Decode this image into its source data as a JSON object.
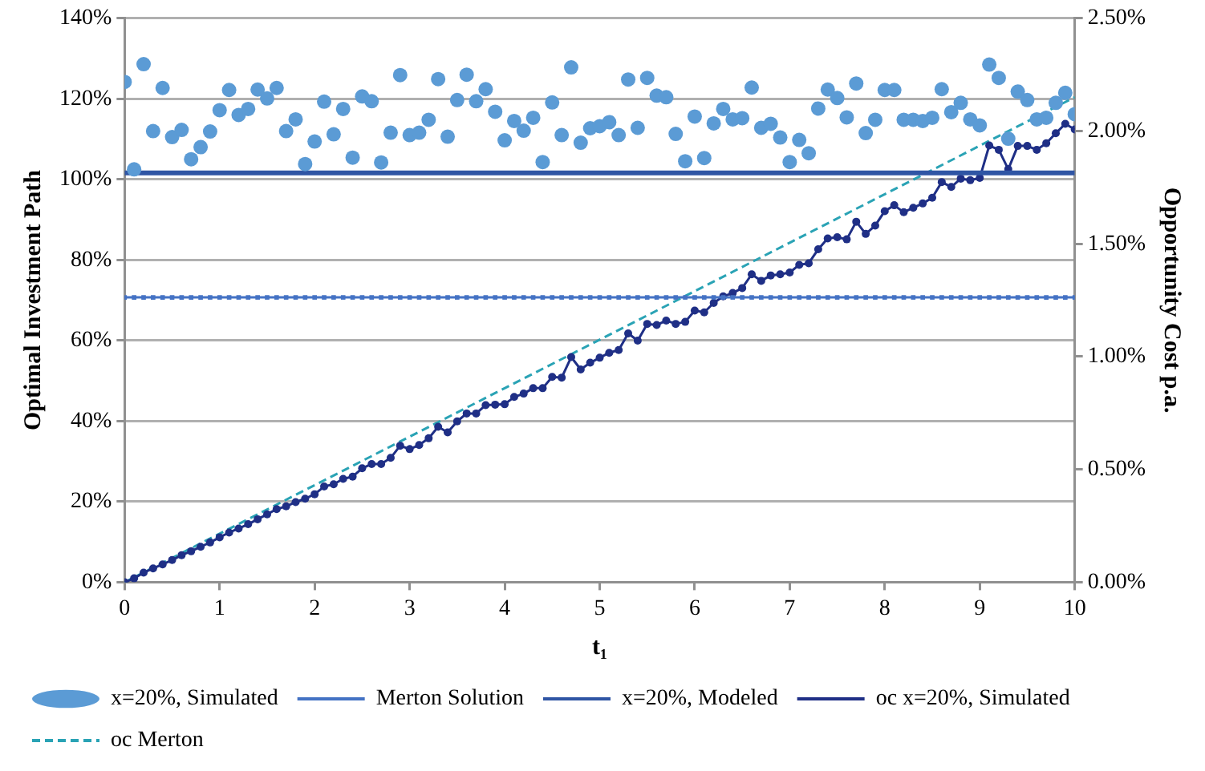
{
  "chart_data": {
    "type": "scatter",
    "xlabel": "t₁",
    "ylabel": "Optimal Investment Path",
    "y2label": "Opportunity Cost p.a.",
    "x": [
      0,
      0.1,
      0.2,
      0.3,
      0.4,
      0.5,
      0.6,
      0.7,
      0.8,
      0.9,
      1,
      1.1,
      1.2,
      1.3,
      1.4,
      1.5,
      1.6,
      1.7,
      1.8,
      1.9,
      2,
      2.1,
      2.2,
      2.3,
      2.4,
      2.5,
      2.6,
      2.7,
      2.8,
      2.9,
      3,
      3.1,
      3.2,
      3.3,
      3.4,
      3.5,
      3.6,
      3.7,
      3.8,
      3.9,
      4,
      4.1,
      4.2,
      4.3,
      4.4,
      4.5,
      4.6,
      4.7,
      4.8,
      4.9,
      5,
      5.1,
      5.2,
      5.3,
      5.4,
      5.5,
      5.6,
      5.7,
      5.8,
      5.9,
      6,
      6.1,
      6.2,
      6.3,
      6.4,
      6.5,
      6.6,
      6.7,
      6.8,
      6.9,
      7,
      7.1,
      7.2,
      7.3,
      7.4,
      7.5,
      7.6,
      7.7,
      7.8,
      7.9,
      8,
      8.1,
      8.2,
      8.3,
      8.4,
      8.5,
      8.6,
      8.7,
      8.8,
      8.9,
      9,
      9.1,
      9.2,
      9.3,
      9.4,
      9.5,
      9.6,
      9.7,
      9.8,
      9.9,
      10
    ],
    "series": [
      {
        "name": "x=20%, Simulated",
        "type": "scatter",
        "marker": "circle",
        "color": "#5b9bd5",
        "values": [
          124.2,
          102.5,
          128.6,
          112,
          122.7,
          110.5,
          112.3,
          105,
          108,
          111.9,
          117.2,
          122.2,
          116,
          117.5,
          122.3,
          120.1,
          122.7,
          112,
          114.9,
          103.8,
          109.4,
          119.3,
          111.2,
          117.5,
          105.4,
          120.6,
          119.4,
          104.2,
          111.6,
          125.9,
          111,
          111.6,
          114.8,
          124.9,
          110.6,
          119.7,
          126,
          119.4,
          122.4,
          116.8,
          109.7,
          114.5,
          112.1,
          115.3,
          104.3,
          119.1,
          111,
          127.8,
          109.1,
          112.7,
          113.2,
          114.2,
          111,
          124.8,
          112.8,
          125.2,
          120.8,
          120.4,
          111.3,
          104.5,
          115.6,
          105.3,
          113.9,
          117.5,
          114.9,
          115.2,
          122.8,
          112.8,
          113.8,
          110.4,
          104.3,
          109.8,
          106.5,
          117.6,
          122.3,
          120.2,
          115.4,
          123.8,
          111.5,
          114.8,
          122.2,
          122.2,
          114.8,
          114.8,
          114.5,
          115.3,
          122.4,
          116.7,
          119,
          114.9,
          113.4,
          128.5,
          125.2,
          110.1,
          121.8,
          119.7,
          114.9,
          115.3,
          119,
          121.5,
          116.2
        ]
      },
      {
        "name": "Merton Solution",
        "type": "line",
        "marker": "square",
        "line_style": "solid",
        "color": "#4472c4",
        "values": [
          70.7,
          70.7,
          70.7,
          70.7,
          70.7,
          70.7,
          70.7,
          70.7,
          70.7,
          70.7,
          70.7,
          70.7,
          70.7,
          70.7,
          70.7,
          70.7,
          70.7,
          70.7,
          70.7,
          70.7,
          70.7,
          70.7,
          70.7,
          70.7,
          70.7,
          70.7,
          70.7,
          70.7,
          70.7,
          70.7,
          70.7,
          70.7,
          70.7,
          70.7,
          70.7,
          70.7,
          70.7,
          70.7,
          70.7,
          70.7,
          70.7,
          70.7,
          70.7,
          70.7,
          70.7,
          70.7,
          70.7,
          70.7,
          70.7,
          70.7,
          70.7,
          70.7,
          70.7,
          70.7,
          70.7,
          70.7,
          70.7,
          70.7,
          70.7,
          70.7,
          70.7,
          70.7,
          70.7,
          70.7,
          70.7,
          70.7,
          70.7,
          70.7,
          70.7,
          70.7,
          70.7,
          70.7,
          70.7,
          70.7,
          70.7,
          70.7,
          70.7,
          70.7,
          70.7,
          70.7,
          70.7,
          70.7,
          70.7,
          70.7,
          70.7,
          70.7,
          70.7,
          70.7,
          70.7,
          70.7,
          70.7,
          70.7,
          70.7,
          70.7,
          70.7,
          70.7,
          70.7,
          70.7,
          70.7,
          70.7,
          70.7
        ]
      },
      {
        "name": "x=20%, Modeled",
        "type": "line",
        "marker": "none",
        "line_style": "solid",
        "color": "#2f55a4",
        "values": [
          101.6,
          101.6,
          101.6,
          101.6,
          101.6,
          101.6,
          101.6,
          101.6,
          101.6,
          101.6,
          101.6,
          101.6,
          101.6,
          101.6,
          101.6,
          101.6,
          101.6,
          101.6,
          101.6,
          101.6,
          101.6,
          101.6,
          101.6,
          101.6,
          101.6,
          101.6,
          101.6,
          101.6,
          101.6,
          101.6,
          101.6,
          101.6,
          101.6,
          101.6,
          101.6,
          101.6,
          101.6,
          101.6,
          101.6,
          101.6,
          101.6,
          101.6,
          101.6,
          101.6,
          101.6,
          101.6,
          101.6,
          101.6,
          101.6,
          101.6,
          101.6,
          101.6,
          101.6,
          101.6,
          101.6,
          101.6,
          101.6,
          101.6,
          101.6,
          101.6,
          101.6,
          101.6,
          101.6,
          101.6,
          101.6,
          101.6,
          101.6,
          101.6,
          101.6,
          101.6,
          101.6,
          101.6,
          101.6,
          101.6,
          101.6,
          101.6,
          101.6,
          101.6,
          101.6,
          101.6,
          101.6,
          101.6,
          101.6,
          101.6,
          101.6,
          101.6,
          101.6,
          101.6,
          101.6,
          101.6,
          101.6,
          101.6,
          101.6,
          101.6,
          101.6,
          101.6,
          101.6,
          101.6,
          101.6,
          101.6,
          101.6
        ]
      },
      {
        "name": "oc x=20%, Simulated",
        "type": "line",
        "marker": "circle",
        "line_style": "solid",
        "axis": "y2",
        "color": "#1f2f86",
        "values": [
          0,
          0.017,
          0.042,
          0.061,
          0.079,
          0.098,
          0.12,
          0.137,
          0.157,
          0.176,
          0.199,
          0.22,
          0.238,
          0.257,
          0.279,
          0.301,
          0.324,
          0.336,
          0.355,
          0.37,
          0.39,
          0.424,
          0.434,
          0.458,
          0.468,
          0.505,
          0.524,
          0.524,
          0.551,
          0.605,
          0.59,
          0.608,
          0.638,
          0.689,
          0.664,
          0.713,
          0.748,
          0.748,
          0.785,
          0.787,
          0.789,
          0.821,
          0.836,
          0.86,
          0.86,
          0.91,
          0.907,
          0.998,
          0.943,
          0.973,
          0.995,
          1.017,
          1.029,
          1.103,
          1.071,
          1.145,
          1.14,
          1.16,
          1.145,
          1.154,
          1.204,
          1.196,
          1.238,
          1.267,
          1.282,
          1.304,
          1.365,
          1.336,
          1.36,
          1.365,
          1.373,
          1.407,
          1.414,
          1.476,
          1.524,
          1.529,
          1.52,
          1.598,
          1.544,
          1.581,
          1.645,
          1.671,
          1.64,
          1.66,
          1.679,
          1.704,
          1.774,
          1.752,
          1.789,
          1.782,
          1.792,
          1.936,
          1.917,
          1.831,
          1.934,
          1.934,
          1.917,
          1.946,
          1.99,
          2.032,
          2.007
        ]
      },
      {
        "name": "oc Merton",
        "type": "line",
        "marker": "none",
        "line_style": "dashed",
        "axis": "y2",
        "color": "#2aa3b5",
        "x": [
          0,
          1,
          2,
          3,
          4,
          5,
          6,
          7,
          8,
          9,
          10
        ],
        "values": [
          0,
          0.215,
          0.43,
          0.645,
          0.86,
          1.075,
          1.29,
          1.505,
          1.72,
          1.935,
          2.15
        ]
      }
    ],
    "xlim": [
      0,
      10
    ],
    "xticks": [
      0,
      1,
      2,
      3,
      4,
      5,
      6,
      7,
      8,
      9,
      10
    ],
    "ylim": [
      0,
      140
    ],
    "yticks": [
      {
        "value": 0,
        "label": "0%"
      },
      {
        "value": 20,
        "label": "20%"
      },
      {
        "value": 40,
        "label": "40%"
      },
      {
        "value": 60,
        "label": "60%"
      },
      {
        "value": 80,
        "label": "80%"
      },
      {
        "value": 100,
        "label": "100%"
      },
      {
        "value": 120,
        "label": "120%"
      },
      {
        "value": 140,
        "label": "140%"
      }
    ],
    "y2lim": [
      0,
      2.5
    ],
    "y2ticks": [
      {
        "value": 0,
        "label": "0.00%"
      },
      {
        "value": 0.5,
        "label": "0.50%"
      },
      {
        "value": 1,
        "label": "1.00%"
      },
      {
        "value": 1.5,
        "label": "1.50%"
      },
      {
        "value": 2,
        "label": "2.00%"
      },
      {
        "value": 2.5,
        "label": "2.50%"
      }
    ],
    "grid": "y",
    "legend": "bottom"
  }
}
